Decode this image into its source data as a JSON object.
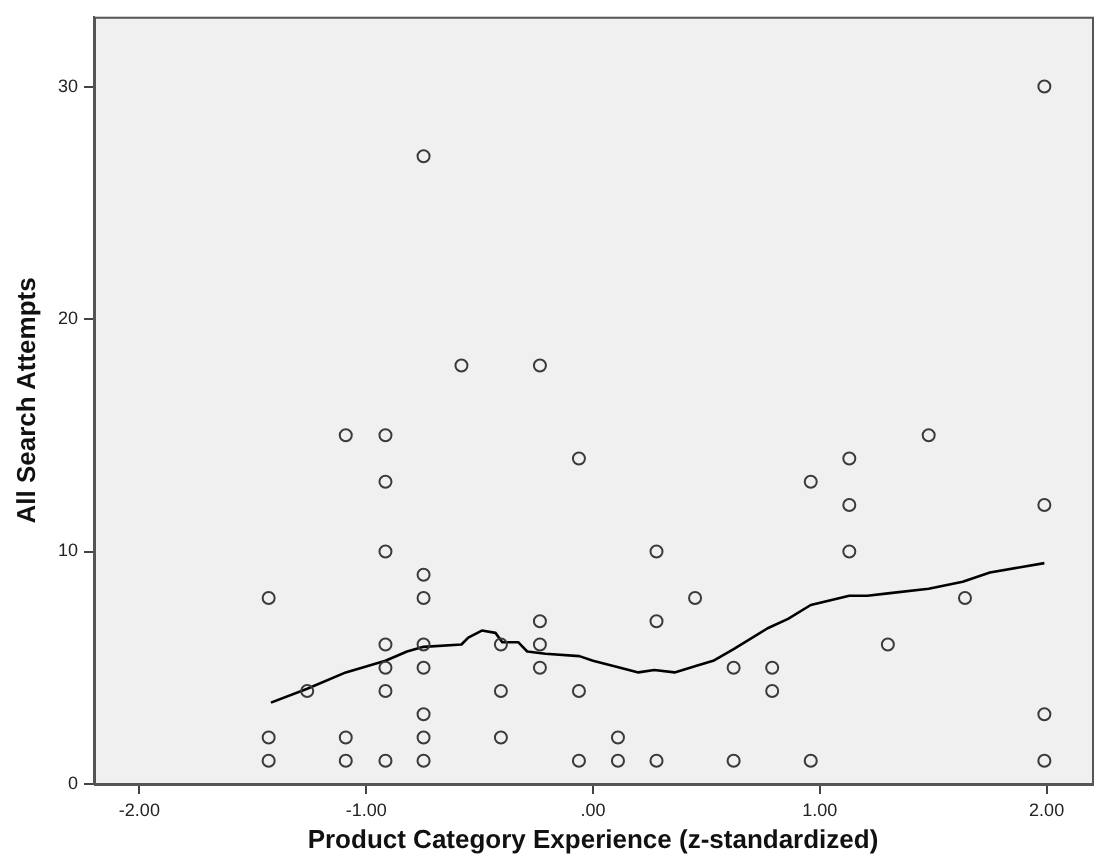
{
  "chart_data": {
    "type": "scatter",
    "xlabel": "Product Category Experience (z-standardized)",
    "ylabel": "All Search Attempts",
    "xlim": [
      -2.2,
      2.2
    ],
    "ylim": [
      0,
      33
    ],
    "xticks": [
      {
        "value": -2,
        "label": "-2.00"
      },
      {
        "value": -1,
        "label": "-1.00"
      },
      {
        "value": 0,
        "label": ".00"
      },
      {
        "value": 1,
        "label": "1.00"
      },
      {
        "value": 2,
        "label": "2.00"
      }
    ],
    "yticks": [
      0,
      10,
      20,
      30
    ],
    "grid": false,
    "legend": false,
    "marker": "circle",
    "series": [
      {
        "color": "#3a3a3a",
        "x": [
          -1.43,
          -1.43,
          -1.43,
          -1.26,
          -1.09,
          -1.09,
          -1.09,
          -0.915,
          -0.915,
          -0.915,
          -0.915,
          -0.915,
          -0.915,
          -0.915,
          -0.747,
          -0.747,
          -0.747,
          -0.747,
          -0.747,
          -0.747,
          -0.747,
          -0.747,
          -0.58,
          -0.406,
          -0.406,
          -0.406,
          -0.234,
          -0.234,
          -0.234,
          -0.234,
          -0.062,
          -0.062,
          -0.062,
          0.11,
          0.11,
          0.28,
          0.28,
          0.28,
          0.45,
          0.62,
          0.62,
          0.79,
          0.79,
          0.96,
          0.96,
          1.13,
          1.13,
          1.13,
          1.3,
          1.48,
          1.64,
          1.99,
          1.99,
          1.99,
          1.99
        ],
        "values": [
          8,
          2,
          1,
          4,
          15,
          2,
          1,
          15,
          13,
          10,
          6,
          5,
          4,
          1,
          27,
          9,
          8,
          6,
          5,
          3,
          2,
          1,
          18,
          6,
          4,
          2,
          18,
          7,
          6,
          5,
          14,
          4,
          1,
          2,
          1,
          10,
          7,
          1,
          8,
          5,
          1,
          5,
          4,
          13,
          1,
          14,
          12,
          10,
          6,
          15,
          8,
          30,
          12,
          3,
          1
        ]
      },
      {
        "type": "line",
        "color": "#000000",
        "marker": "none",
        "x": [
          -1.42,
          -1.26,
          -1.09,
          -0.915,
          -0.82,
          -0.747,
          -0.58,
          -0.55,
          -0.49,
          -0.43,
          -0.4,
          -0.33,
          -0.29,
          -0.21,
          -0.06,
          0,
          0.12,
          0.2,
          0.27,
          0.36,
          0.46,
          0.53,
          0.62,
          0.77,
          0.86,
          0.96,
          1.13,
          1.21,
          1.3,
          1.48,
          1.63,
          1.75,
          1.99
        ],
        "values": [
          3.5,
          4.1,
          4.8,
          5.3,
          5.7,
          5.9,
          6,
          6.3,
          6.6,
          6.5,
          6.1,
          6.1,
          5.7,
          5.6,
          5.5,
          5.3,
          5,
          4.8,
          4.9,
          4.8,
          5.1,
          5.3,
          5.8,
          6.7,
          7.1,
          7.7,
          8.1,
          8.1,
          8.2,
          8.4,
          8.7,
          9.1,
          9.5
        ]
      }
    ]
  }
}
